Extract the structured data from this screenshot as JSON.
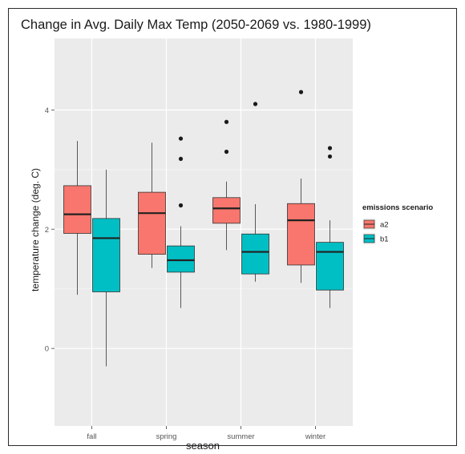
{
  "chart_data": {
    "type": "box",
    "title": "Change in Avg. Daily Max Temp (2050-2069 vs. 1980-1999)",
    "xlabel": "season",
    "ylabel": "temperature change (deg. C)",
    "ylim": [
      -1.3,
      5.2
    ],
    "yticks": [
      0,
      2,
      4
    ],
    "categories": [
      "fall",
      "spring",
      "summer",
      "winter"
    ],
    "grid": true,
    "legend": {
      "title": "emissions scenario",
      "placement": "right"
    },
    "series": [
      {
        "name": "a2",
        "color": "#f8766d",
        "boxes": [
          {
            "category": "fall",
            "min": 0.9,
            "q1": 1.93,
            "median": 2.25,
            "q3": 2.73,
            "max": 3.48,
            "outliers": []
          },
          {
            "category": "spring",
            "min": 1.35,
            "q1": 1.58,
            "median": 2.27,
            "q3": 2.62,
            "max": 3.45,
            "outliers": []
          },
          {
            "category": "summer",
            "min": 1.65,
            "q1": 2.1,
            "median": 2.35,
            "q3": 2.53,
            "max": 2.8,
            "outliers": [
              3.3,
              3.8
            ]
          },
          {
            "category": "winter",
            "min": 1.1,
            "q1": 1.4,
            "median": 2.15,
            "q3": 2.43,
            "max": 2.85,
            "outliers": [
              4.3
            ]
          }
        ]
      },
      {
        "name": "b1",
        "color": "#00bfc4",
        "boxes": [
          {
            "category": "fall",
            "min": -0.3,
            "q1": 0.95,
            "median": 1.85,
            "q3": 2.18,
            "max": 3.0,
            "outliers": []
          },
          {
            "category": "spring",
            "min": 0.68,
            "q1": 1.28,
            "median": 1.48,
            "q3": 1.72,
            "max": 2.05,
            "outliers": [
              2.4,
              3.18,
              3.52
            ]
          },
          {
            "category": "summer",
            "min": 1.12,
            "q1": 1.25,
            "median": 1.62,
            "q3": 1.92,
            "max": 2.42,
            "outliers": [
              4.1
            ]
          },
          {
            "category": "winter",
            "min": 0.68,
            "q1": 0.98,
            "median": 1.62,
            "q3": 1.78,
            "max": 2.15,
            "outliers": [
              3.22,
              3.36
            ]
          }
        ]
      }
    ]
  },
  "style": {
    "panel_bg": "#ebebeb",
    "grid_color": "#ffffff",
    "line_color": "#333333",
    "point_color": "#1a1a1a"
  }
}
